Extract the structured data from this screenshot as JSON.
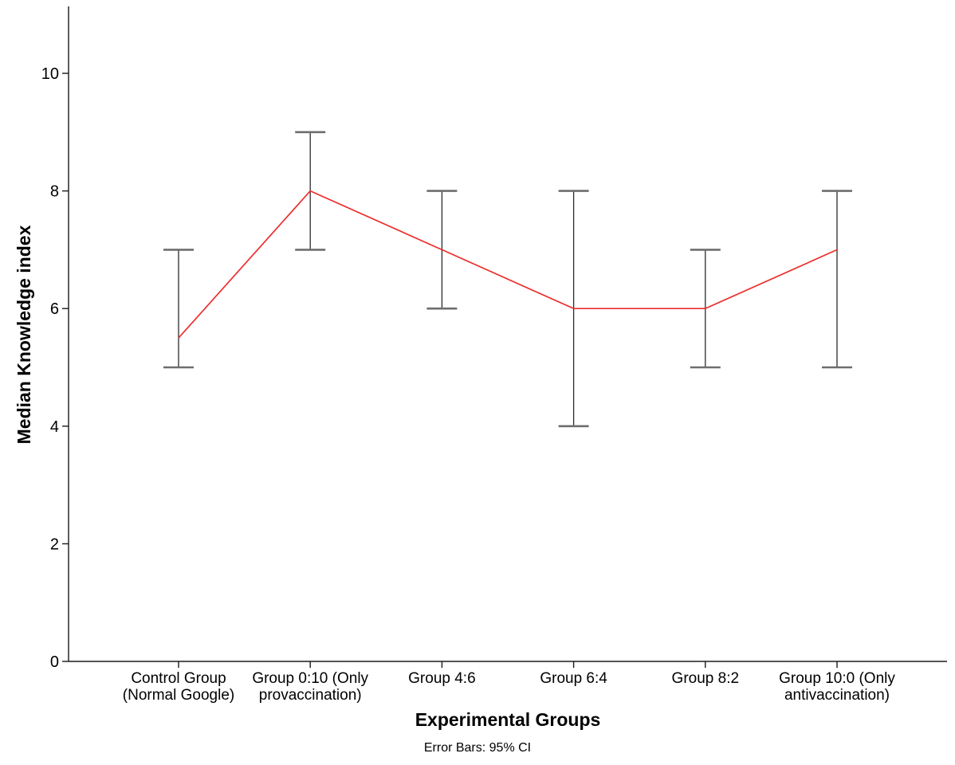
{
  "chart_data": {
    "type": "line",
    "title": "",
    "xlabel": "Experimental Groups",
    "ylabel": "Median Knowledge index",
    "footnote": "Error Bars: 95% CI",
    "categories": [
      "Control Group (Normal Google)",
      "Group 0:10 (Only provaccination)",
      "Group 4:6",
      "Group 6:4",
      "Group 8:2",
      "Group 10:0 (Only antivaccination)"
    ],
    "category_label_lines": [
      [
        "Control Group",
        "(Normal Google)"
      ],
      [
        "Group 0:10 (Only",
        "provaccination)"
      ],
      [
        "Group 4:6"
      ],
      [
        "Group 6:4"
      ],
      [
        "Group 8:2"
      ],
      [
        "Group 10:0 (Only",
        "antivaccination)"
      ]
    ],
    "series": [
      {
        "name": "Median Knowledge index",
        "values": [
          5.5,
          8,
          7,
          6,
          6,
          7
        ]
      }
    ],
    "error_bars": {
      "type": "95% CI",
      "low": [
        5,
        7,
        6,
        4,
        5,
        5
      ],
      "high": [
        7,
        9,
        8,
        8,
        7,
        8
      ]
    },
    "yticks": [
      0,
      2,
      4,
      6,
      8,
      10
    ],
    "ylim": [
      0,
      11.1
    ],
    "grid": false,
    "legend": "none",
    "colors": {
      "line": "#ec2e2c",
      "error_bar_stem": "#2b2b2b",
      "error_bar_cap": "#6e6e6e",
      "axis": "#1a1a1a",
      "text": "#000000",
      "background": "#ffffff"
    }
  }
}
